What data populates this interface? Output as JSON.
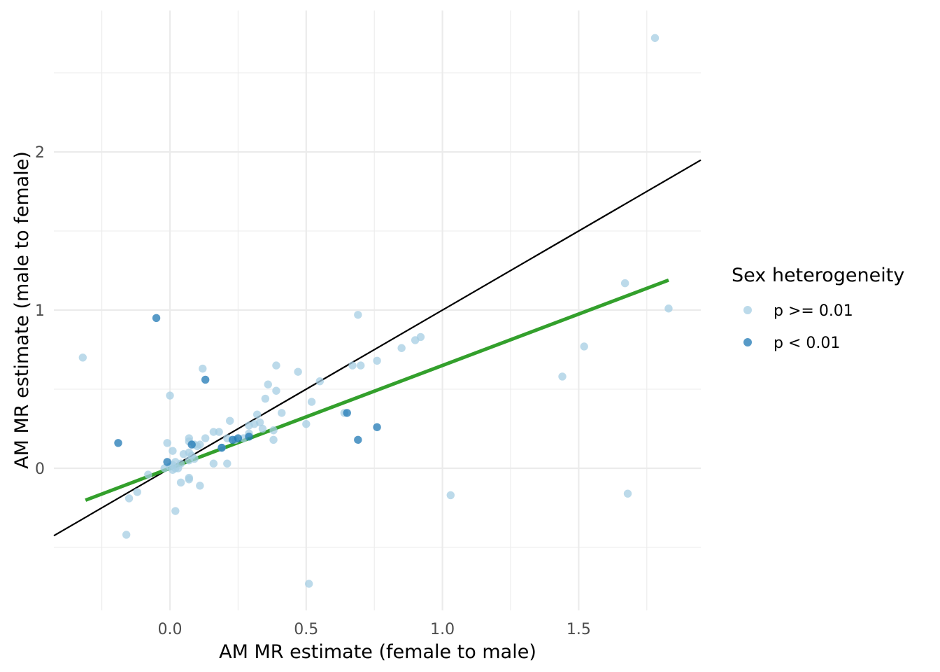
{
  "chart_data": {
    "type": "scatter",
    "title": "",
    "xlabel": "AM MR estimate (female to male)",
    "ylabel": "AM MR estimate (male to female)",
    "xlim": [
      -0.42,
      1.95
    ],
    "ylim": [
      -0.9,
      2.9
    ],
    "x_ticks": [
      0.0,
      0.5,
      1.0,
      1.5
    ],
    "x_tick_labels": [
      "0.0",
      "0.5",
      "1.0",
      "1.5"
    ],
    "x_minor_ticks": [
      -0.25,
      0.25,
      0.75,
      1.25,
      1.75
    ],
    "y_ticks": [
      0,
      1,
      2
    ],
    "y_tick_labels": [
      "0",
      "1",
      "2"
    ],
    "y_minor_ticks": [
      -0.5,
      0.5,
      1.5,
      2.5
    ],
    "grid": true,
    "legend": {
      "title": "Sex heterogeneity",
      "position": "right",
      "entries": [
        {
          "label": "p >= 0.01",
          "color": "#a6cee3"
        },
        {
          "label": "p < 0.01",
          "color": "#1f78b4"
        }
      ]
    },
    "series": [
      {
        "name": "p >= 0.01",
        "color": "#a6cee3",
        "points": [
          [
            1.78,
            2.72
          ],
          [
            -0.32,
            0.7
          ],
          [
            0.69,
            0.97
          ],
          [
            1.67,
            1.17
          ],
          [
            1.83,
            1.01
          ],
          [
            1.52,
            0.77
          ],
          [
            0.92,
            0.83
          ],
          [
            0.9,
            0.81
          ],
          [
            0.85,
            0.76
          ],
          [
            0.76,
            0.68
          ],
          [
            0.7,
            0.65
          ],
          [
            0.67,
            0.65
          ],
          [
            1.44,
            0.58
          ],
          [
            0.55,
            0.55
          ],
          [
            0.47,
            0.61
          ],
          [
            0.39,
            0.65
          ],
          [
            0.36,
            0.53
          ],
          [
            0.39,
            0.49
          ],
          [
            0.35,
            0.44
          ],
          [
            0.52,
            0.42
          ],
          [
            0.41,
            0.35
          ],
          [
            0.32,
            0.34
          ],
          [
            0.64,
            0.35
          ],
          [
            0.5,
            0.28
          ],
          [
            0.33,
            0.29
          ],
          [
            0.34,
            0.25
          ],
          [
            0.38,
            0.24
          ],
          [
            0.29,
            0.27
          ],
          [
            0.31,
            0.28
          ],
          [
            0.22,
            0.3
          ],
          [
            0.29,
            0.22
          ],
          [
            0.18,
            0.23
          ],
          [
            0.16,
            0.23
          ],
          [
            0.21,
            0.19
          ],
          [
            0.13,
            0.19
          ],
          [
            0.07,
            0.19
          ],
          [
            0.07,
            0.17
          ],
          [
            0.11,
            0.15
          ],
          [
            0.1,
            0.14
          ],
          [
            0.09,
            0.15
          ],
          [
            0.19,
            0.13
          ],
          [
            0.24,
            0.18
          ],
          [
            0.27,
            0.19
          ],
          [
            0.38,
            0.18
          ],
          [
            0.12,
            0.63
          ],
          [
            0.0,
            0.46
          ],
          [
            -0.01,
            0.16
          ],
          [
            0.01,
            0.11
          ],
          [
            0.05,
            0.09
          ],
          [
            0.07,
            0.1
          ],
          [
            0.08,
            0.08
          ],
          [
            0.09,
            0.06
          ],
          [
            0.07,
            0.05
          ],
          [
            0.04,
            0.03
          ],
          [
            0.02,
            0.04
          ],
          [
            0.01,
            0.02
          ],
          [
            0.0,
            0.01
          ],
          [
            0.02,
            0.0
          ],
          [
            0.03,
            0.0
          ],
          [
            -0.02,
            0.0
          ],
          [
            0.01,
            -0.01
          ],
          [
            0.16,
            0.03
          ],
          [
            0.21,
            0.03
          ],
          [
            0.04,
            -0.09
          ],
          [
            0.07,
            -0.06
          ],
          [
            0.07,
            -0.07
          ],
          [
            0.11,
            -0.11
          ],
          [
            -0.08,
            -0.04
          ],
          [
            -0.12,
            -0.15
          ],
          [
            -0.15,
            -0.19
          ],
          [
            0.02,
            -0.27
          ],
          [
            -0.16,
            -0.42
          ],
          [
            0.51,
            -0.73
          ],
          [
            1.03,
            -0.17
          ],
          [
            1.68,
            -0.16
          ]
        ]
      },
      {
        "name": "p < 0.01",
        "color": "#1f78b4",
        "points": [
          [
            -0.05,
            0.95
          ],
          [
            0.13,
            0.56
          ],
          [
            -0.19,
            0.16
          ],
          [
            0.65,
            0.35
          ],
          [
            0.76,
            0.26
          ],
          [
            0.69,
            0.18
          ],
          [
            0.29,
            0.2
          ],
          [
            0.25,
            0.19
          ],
          [
            0.23,
            0.18
          ],
          [
            0.19,
            0.13
          ],
          [
            0.08,
            0.15
          ],
          [
            -0.01,
            0.04
          ]
        ]
      }
    ],
    "reference_line": {
      "slope": 1,
      "intercept": 0,
      "color": "#000000"
    },
    "fit_line": {
      "slope": 0.65,
      "intercept": 0.0,
      "x_range": [
        -0.31,
        1.83
      ],
      "color": "#33a02c"
    }
  }
}
